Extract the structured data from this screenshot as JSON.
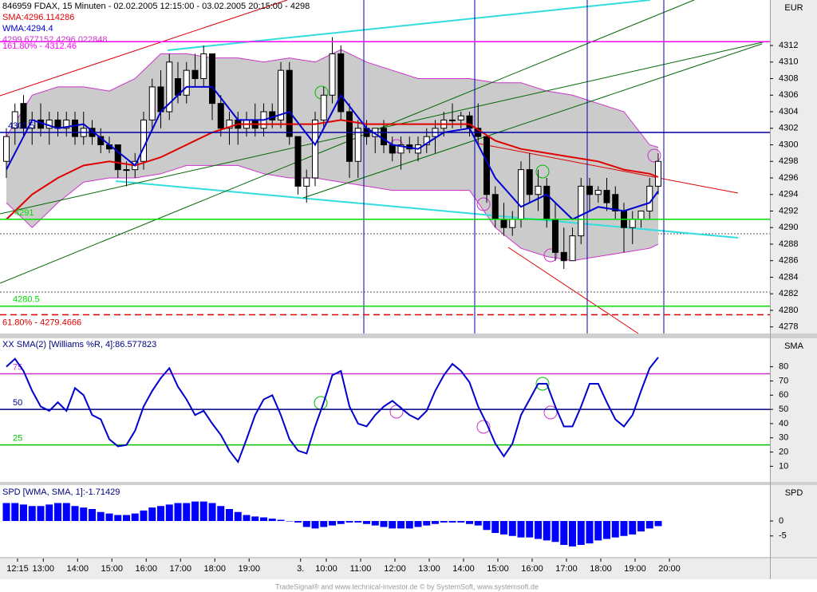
{
  "chart_data": [
    {
      "type": "candlestick",
      "title": "846959 FDAX, 15 Minuten - 02.02.2005 12:15:00 - 03.02.2005 20:15:00 - 4298",
      "axis_label": "EUR",
      "open": [
        4298,
        4302,
        4305,
        4302,
        4303,
        4302,
        4303,
        4302,
        4303,
        4301,
        4302,
        4301,
        4300,
        4300,
        4297,
        4297,
        4298,
        4303,
        4307,
        4304,
        4308,
        4306,
        4309,
        4308,
        4311,
        4305,
        4302,
        4303,
        4302,
        4303,
        4302,
        4304,
        4303,
        4309,
        4301,
        4295,
        4296,
        4303,
        4306,
        4311,
        4304,
        4298,
        4302,
        4301,
        4302,
        4300,
        4299,
        4300,
        4299,
        4300,
        4301,
        4302,
        4303,
        4303,
        4303.5,
        4302,
        4301,
        4294,
        4291,
        4290,
        4291,
        4297,
        4294,
        4295,
        4291,
        4287,
        4286,
        4289,
        4295,
        4294,
        4294.5,
        4294,
        4292,
        4290,
        4291,
        4292,
        4295
      ],
      "high": [
        4302,
        4305,
        4306,
        4304,
        4305,
        4304,
        4304,
        4304,
        4304,
        4304,
        4303,
        4302,
        4301,
        4300,
        4298,
        4299,
        4304,
        4308,
        4309,
        4311,
        4310,
        4310,
        4311,
        4312,
        4311,
        4306,
        4304,
        4304,
        4304,
        4305,
        4305,
        4305,
        4310,
        4310,
        4301,
        4297,
        4304,
        4307,
        4313,
        4312,
        4305,
        4303,
        4303,
        4302,
        4303,
        4301,
        4301,
        4301,
        4301,
        4302,
        4303,
        4304,
        4305,
        4304,
        4304,
        4305,
        4301,
        4295,
        4293,
        4292,
        4298,
        4299,
        4297,
        4296,
        4293,
        4290,
        4290,
        4296,
        4296,
        4295,
        4296,
        4295,
        4293,
        4292,
        4292,
        4296,
        4299
      ],
      "low": [
        4296,
        4300,
        4301,
        4300,
        4301,
        4300,
        4301,
        4301,
        4300,
        4300,
        4300,
        4299,
        4299,
        4296,
        4295,
        4296,
        4297,
        4302,
        4302,
        4303,
        4305,
        4305,
        4307,
        4307,
        4303,
        4301,
        4300,
        4300,
        4301,
        4301,
        4301,
        4302,
        4302,
        4300,
        4294,
        4293,
        4295,
        4302,
        4305,
        4303,
        4296,
        4296,
        4300,
        4299,
        4299,
        4298,
        4297,
        4299,
        4298,
        4299,
        4299,
        4301,
        4302,
        4302,
        4301,
        4300,
        4293,
        4290,
        4289,
        4289,
        4290,
        4293,
        4292,
        4290,
        4286,
        4285,
        4286,
        4288,
        4292,
        4293,
        4292,
        4291,
        4287,
        4288,
        4290,
        4291,
        4294
      ],
      "close": [
        4301,
        4304,
        4302,
        4303,
        4302,
        4303,
        4302,
        4303,
        4301,
        4302,
        4301,
        4300,
        4299.5,
        4297,
        4297,
        4298,
        4303,
        4307,
        4304,
        4310,
        4306,
        4309,
        4308,
        4311,
        4305,
        4302,
        4303,
        4302,
        4303,
        4302,
        4304,
        4303,
        4309,
        4301,
        4295,
        4296,
        4303,
        4306,
        4311,
        4304,
        4298,
        4302,
        4301,
        4302,
        4300,
        4299,
        4300,
        4299.5,
        4300,
        4301,
        4302,
        4303,
        4303,
        4303.5,
        4302,
        4301,
        4294,
        4291,
        4290,
        4291,
        4297,
        4294,
        4295,
        4291,
        4287,
        4286,
        4289,
        4295,
        4294,
        4294.5,
        4293,
        4292,
        4290,
        4291,
        4292,
        4295,
        4298
      ],
      "up_color": "#ffffff",
      "down_color": "#000000",
      "overlay_x": [
        0,
        3,
        6,
        9,
        12,
        15,
        18,
        21,
        24,
        27,
        30,
        33,
        36,
        39,
        42,
        45,
        48,
        51,
        54,
        57,
        60,
        63,
        66,
        69,
        72,
        75,
        76
      ],
      "band": {
        "name": "4299.677152 4296.022848",
        "color": "#cc33cc",
        "fill": "#cbcbcb",
        "upper": [
          4301,
          4306,
          4307,
          4307,
          4306.5,
          4308,
          4311,
          4311,
          4310.5,
          4310.5,
          4310,
          4310.5,
          4310,
          4311.5,
          4310,
          4309,
          4308,
          4308,
          4308,
          4307.5,
          4307.5,
          4306.5,
          4306,
          4305,
          4304,
          4300,
          4299.7
        ],
        "lower": [
          4293,
          4290,
          4293,
          4295.5,
          4296,
          4296,
          4296.5,
          4297.5,
          4297.5,
          4297.5,
          4296.5,
          4296,
          4296,
          4295.5,
          4295,
          4294.5,
          4294.5,
          4294.5,
          4294.5,
          4290,
          4287.5,
          4286.5,
          4286,
          4286.5,
          4287,
          4287.5,
          4288
        ]
      },
      "series": [
        {
          "name": "SMA:4296.114286",
          "color": "#e00000",
          "values": [
            4291,
            4294,
            4296,
            4297.5,
            4298,
            4297.5,
            4298.5,
            4300,
            4301.5,
            4302.5,
            4302.5,
            4302.5,
            4302.5,
            4303,
            4302.5,
            4302.5,
            4302.5,
            4302.5,
            4302.5,
            4300.5,
            4299.5,
            4299,
            4298.5,
            4298,
            4297,
            4296.5,
            4296.1
          ]
        },
        {
          "name": "WMA:4294.4",
          "color": "#0000d0",
          "values": [
            4297,
            4303,
            4302,
            4302.5,
            4300,
            4297.5,
            4304,
            4307,
            4307,
            4303,
            4303,
            4304,
            4300,
            4306,
            4302,
            4300,
            4299.5,
            4301.5,
            4302,
            4296,
            4292.5,
            4294,
            4291,
            4292.5,
            4292,
            4293,
            4294.4
          ]
        }
      ],
      "levels": [
        {
          "value": 4312.46,
          "label": "161.80% - 4312.46",
          "color": "#ff00ff"
        },
        {
          "value": 4301.5,
          "color": "#0000aa"
        },
        {
          "value": 4291,
          "color": "#00e000"
        },
        {
          "value": 4280.5,
          "color": "#00e000"
        },
        {
          "value": 4279.4666,
          "label": "61.80% - 4279.4666",
          "color": "#dd0000",
          "dashed": true
        }
      ],
      "ylim": [
        4277.2,
        4317.5
      ],
      "yticks": [
        4278,
        4280,
        4282,
        4284,
        4286,
        4288,
        4290,
        4292,
        4294,
        4296,
        4298,
        4300,
        4302,
        4304,
        4306,
        4308,
        4310,
        4312
      ]
    },
    {
      "type": "line",
      "title": "XX SMA(2) [Williams %R, 4]:86.577823",
      "axis_label": "SMA",
      "color": "#0000cc",
      "values": [
        80,
        85.6,
        77,
        63,
        52,
        49,
        55,
        49,
        65,
        60,
        46,
        43,
        29,
        24,
        25,
        35,
        52,
        63,
        72,
        79,
        66,
        57,
        46,
        49,
        40,
        32,
        21,
        13,
        29,
        46,
        57,
        60,
        46,
        29,
        21,
        19,
        38,
        55,
        74,
        77,
        52,
        40,
        38,
        46,
        52,
        56,
        51,
        46,
        43,
        49,
        63,
        74,
        82,
        77,
        69,
        52,
        40,
        26,
        17,
        26,
        46,
        57,
        68,
        68,
        52,
        38,
        38,
        52,
        68,
        68,
        55,
        43,
        38,
        46,
        63,
        79,
        86.58
      ],
      "levels": [
        {
          "value": 75,
          "color": "#cc33cc"
        },
        {
          "value": 50,
          "color": "#000080"
        },
        {
          "value": 25,
          "color": "#00c000"
        }
      ],
      "ylim": [
        -1,
        100
      ],
      "yticks": [
        10,
        20,
        30,
        40,
        50,
        60,
        70,
        80
      ]
    },
    {
      "type": "bar",
      "title": "SPD [WMA, SMA, 1]:-1.71429",
      "axis_label": "SPD",
      "color": "#0000ff",
      "categories": [
        "12:15",
        null,
        null,
        "13:00",
        null,
        null,
        null,
        "14:00",
        null,
        null,
        null,
        "15:00",
        null,
        null,
        null,
        "16:00",
        null,
        null,
        null,
        "17:00",
        null,
        null,
        null,
        "18:00",
        null,
        null,
        null,
        "19:00",
        null,
        null,
        null,
        null,
        null,
        "3.",
        null,
        null,
        "10:00",
        null,
        null,
        null,
        "11:00",
        null,
        null,
        null,
        "12:00",
        null,
        null,
        null,
        "13:00",
        null,
        null,
        null,
        "14:00",
        null,
        null,
        null,
        "15:00",
        null,
        null,
        null,
        "16:00",
        null,
        null,
        null,
        "17:00",
        null,
        null,
        null,
        "18:00",
        null,
        null,
        null,
        "19:00",
        null,
        null,
        null,
        "20:00"
      ],
      "values": [
        6,
        6,
        5.5,
        5,
        5,
        5.5,
        6,
        6,
        5,
        4.5,
        4,
        3,
        2.5,
        2,
        2,
        2.5,
        3.5,
        4.5,
        5,
        5.5,
        6,
        6,
        6.5,
        6.5,
        6,
        5,
        4,
        3,
        2,
        1.5,
        1.2,
        0.8,
        0.4,
        0,
        -0.5,
        -2,
        -2.5,
        -2,
        -1.5,
        -1,
        -0.5,
        -0.5,
        -1,
        -1.5,
        -2,
        -2.5,
        -2.5,
        -2.5,
        -2,
        -1.5,
        -1,
        -0.5,
        -0.5,
        -0.5,
        -1,
        -1.5,
        -3,
        -4,
        -4.5,
        -5,
        -5.5,
        -5.5,
        -6,
        -6.5,
        -7,
        -8,
        -8.5,
        -8,
        -7.5,
        -6.5,
        -6,
        -5.5,
        -5,
        -4.5,
        -3.5,
        -2.5,
        -1.71429
      ],
      "ylim": [
        -12,
        12
      ],
      "yticks": [
        -5,
        0
      ]
    }
  ],
  "footer": "TradeSignal® and www.technical-investor.de © by SystemSoft, www.systemsoft.de"
}
